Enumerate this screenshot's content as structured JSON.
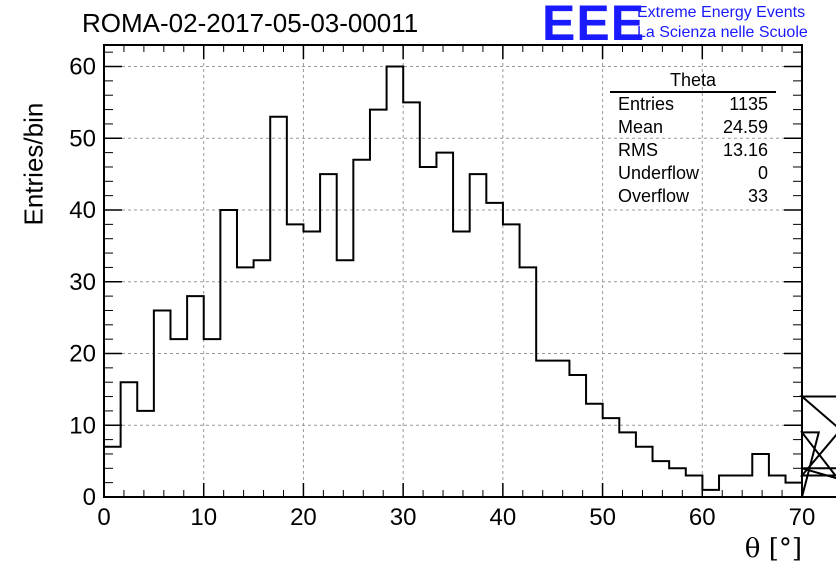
{
  "header": {
    "title": "ROMA-02-2017-05-03-00011",
    "logo_text": "EEE",
    "brand_line1": "Extreme Energy Events",
    "brand_line2": "La Scienza nelle Scuole",
    "brand_color": "#1a1aff"
  },
  "stats_box": {
    "title": "Theta",
    "rows": [
      {
        "label": "Entries",
        "value": "1135"
      },
      {
        "label": "Mean",
        "value": "24.59"
      },
      {
        "label": "RMS",
        "value": "13.16"
      },
      {
        "label": "Underflow",
        "value": "0"
      },
      {
        "label": "Overflow",
        "value": "33"
      }
    ]
  },
  "chart_data": {
    "type": "histogram",
    "title": "ROMA-02-2017-05-03-00011",
    "xlabel": "θ [°]",
    "ylabel": "Entries/bin",
    "xlim": [
      0,
      70
    ],
    "ylim": [
      0,
      63
    ],
    "x_ticks": [
      0,
      10,
      20,
      30,
      40,
      50,
      60,
      70
    ],
    "y_ticks": [
      0,
      10,
      20,
      30,
      40,
      50,
      60
    ],
    "grid": true,
    "bin_width": 1.667,
    "bin_edges_start": 0,
    "values": [
      7,
      16,
      12,
      26,
      22,
      28,
      22,
      40,
      32,
      33,
      53,
      38,
      37,
      45,
      33,
      47,
      54,
      60,
      55,
      46,
      48,
      37,
      45,
      41,
      38,
      32,
      19,
      19,
      17,
      13,
      11,
      9,
      7,
      5,
      4,
      3,
      1,
      3,
      3,
      6,
      3,
      2,
      0,
      9,
      3,
      3,
      14,
      4,
      0
    ],
    "line_color": "#000000"
  }
}
